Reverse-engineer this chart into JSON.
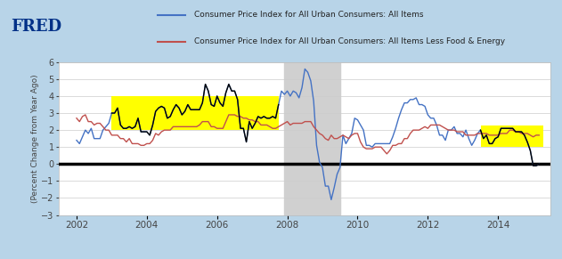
{
  "background_color": "#b8d4e8",
  "plot_bg_color": "#ffffff",
  "ylim": [
    -3,
    6
  ],
  "yticks": [
    -3,
    -2,
    -1,
    0,
    1,
    2,
    3,
    4,
    5,
    6
  ],
  "xlim_start": 2001.5,
  "xlim_end": 2015.5,
  "xticks": [
    2002,
    2004,
    2006,
    2008,
    2010,
    2012,
    2014
  ],
  "recession_start": 2007.9,
  "recession_end": 2009.5,
  "yellow_rect1_x": 2003.0,
  "yellow_rect1_end": 2007.75,
  "yellow_rect1_ymin": 2.0,
  "yellow_rect1_ymax": 4.0,
  "yellow_rect2_x": 2013.5,
  "yellow_rect2_end": 2015.3,
  "yellow_rect2_ymin": 1.0,
  "yellow_rect2_ymax": 2.25,
  "zero_line_color": "#000000",
  "cpi_all_color": "#4472c4",
  "cpi_core_color": "#c0504d",
  "cpi_black_color": "#000000",
  "legend_label_all": "Consumer Price Index for All Urban Consumers: All Items",
  "legend_label_core": "Consumer Price Index for All Urban Consumers: All Items Less Food & Energy",
  "ylabel": "(Percent Change from Year Ago)",
  "cpi_all_x": [
    2002.0,
    2002.083,
    2002.167,
    2002.25,
    2002.333,
    2002.417,
    2002.5,
    2002.583,
    2002.667,
    2002.75,
    2002.833,
    2002.917,
    2003.0,
    2003.083,
    2003.167,
    2003.25,
    2003.333,
    2003.417,
    2003.5,
    2003.583,
    2003.667,
    2003.75,
    2003.833,
    2003.917,
    2004.0,
    2004.083,
    2004.167,
    2004.25,
    2004.333,
    2004.417,
    2004.5,
    2004.583,
    2004.667,
    2004.75,
    2004.833,
    2004.917,
    2005.0,
    2005.083,
    2005.167,
    2005.25,
    2005.333,
    2005.417,
    2005.5,
    2005.583,
    2005.667,
    2005.75,
    2005.833,
    2005.917,
    2006.0,
    2006.083,
    2006.167,
    2006.25,
    2006.333,
    2006.417,
    2006.5,
    2006.583,
    2006.667,
    2006.75,
    2006.833,
    2006.917,
    2007.0,
    2007.083,
    2007.167,
    2007.25,
    2007.333,
    2007.417,
    2007.5,
    2007.583,
    2007.667,
    2007.75,
    2007.833,
    2007.917,
    2008.0,
    2008.083,
    2008.167,
    2008.25,
    2008.333,
    2008.417,
    2008.5,
    2008.583,
    2008.667,
    2008.75,
    2008.833,
    2008.917,
    2009.0,
    2009.083,
    2009.167,
    2009.25,
    2009.333,
    2009.417,
    2009.5,
    2009.583,
    2009.667,
    2009.75,
    2009.833,
    2009.917,
    2010.0,
    2010.083,
    2010.167,
    2010.25,
    2010.333,
    2010.417,
    2010.5,
    2010.583,
    2010.667,
    2010.75,
    2010.833,
    2010.917,
    2011.0,
    2011.083,
    2011.167,
    2011.25,
    2011.333,
    2011.417,
    2011.5,
    2011.583,
    2011.667,
    2011.75,
    2011.833,
    2011.917,
    2012.0,
    2012.083,
    2012.167,
    2012.25,
    2012.333,
    2012.417,
    2012.5,
    2012.583,
    2012.667,
    2012.75,
    2012.833,
    2012.917,
    2013.0,
    2013.083,
    2013.167,
    2013.25,
    2013.333,
    2013.417,
    2013.5,
    2013.583,
    2013.667,
    2013.75,
    2013.833,
    2013.917,
    2014.0,
    2014.083,
    2014.167,
    2014.25,
    2014.333,
    2014.417,
    2014.5,
    2014.583,
    2014.667,
    2014.75,
    2014.833,
    2014.917,
    2015.0,
    2015.083,
    2015.167
  ],
  "cpi_all_y": [
    1.4,
    1.2,
    1.6,
    2.0,
    1.8,
    2.1,
    1.5,
    1.5,
    1.5,
    2.0,
    2.2,
    2.4,
    3.0,
    3.0,
    3.3,
    2.3,
    2.1,
    2.1,
    2.2,
    2.1,
    2.2,
    2.7,
    1.9,
    1.9,
    1.9,
    1.7,
    2.3,
    3.1,
    3.3,
    3.4,
    3.3,
    2.7,
    2.8,
    3.2,
    3.5,
    3.3,
    2.9,
    3.1,
    3.5,
    3.2,
    3.2,
    3.2,
    3.2,
    3.6,
    4.7,
    4.3,
    3.5,
    3.4,
    4.0,
    3.6,
    3.4,
    4.2,
    4.7,
    4.3,
    4.3,
    3.8,
    2.1,
    2.1,
    1.3,
    2.5,
    2.1,
    2.4,
    2.8,
    2.7,
    2.8,
    2.7,
    2.7,
    2.8,
    2.7,
    3.5,
    4.3,
    4.1,
    4.3,
    4.0,
    4.3,
    4.2,
    3.9,
    4.5,
    5.6,
    5.4,
    4.9,
    3.7,
    1.1,
    0.1,
    -0.2,
    -1.3,
    -1.3,
    -2.1,
    -1.4,
    -0.6,
    -0.2,
    1.7,
    1.2,
    1.5,
    1.8,
    2.7,
    2.6,
    2.3,
    2.0,
    1.1,
    1.1,
    1.0,
    1.2,
    1.2,
    1.2,
    1.2,
    1.2,
    1.2,
    1.6,
    2.1,
    2.7,
    3.2,
    3.6,
    3.6,
    3.8,
    3.8,
    3.9,
    3.5,
    3.5,
    3.4,
    2.9,
    2.7,
    2.7,
    2.3,
    1.7,
    1.7,
    1.4,
    2.0,
    2.0,
    2.2,
    1.8,
    1.8,
    1.6,
    2.0,
    1.5,
    1.1,
    1.4,
    1.8,
    2.0,
    1.5,
    1.7,
    1.2,
    1.2,
    1.5,
    1.6,
    2.1,
    2.1,
    2.1,
    2.1,
    2.1,
    1.9,
    1.9,
    1.9,
    1.7,
    1.3,
    0.8,
    -0.1,
    -0.1,
    0.0
  ],
  "cpi_core_x": [
    2002.0,
    2002.083,
    2002.167,
    2002.25,
    2002.333,
    2002.417,
    2002.5,
    2002.583,
    2002.667,
    2002.75,
    2002.833,
    2002.917,
    2003.0,
    2003.083,
    2003.167,
    2003.25,
    2003.333,
    2003.417,
    2003.5,
    2003.583,
    2003.667,
    2003.75,
    2003.833,
    2003.917,
    2004.0,
    2004.083,
    2004.167,
    2004.25,
    2004.333,
    2004.417,
    2004.5,
    2004.583,
    2004.667,
    2004.75,
    2004.833,
    2004.917,
    2005.0,
    2005.083,
    2005.167,
    2005.25,
    2005.333,
    2005.417,
    2005.5,
    2005.583,
    2005.667,
    2005.75,
    2005.833,
    2005.917,
    2006.0,
    2006.083,
    2006.167,
    2006.25,
    2006.333,
    2006.417,
    2006.5,
    2006.583,
    2006.667,
    2006.75,
    2006.833,
    2006.917,
    2007.0,
    2007.083,
    2007.167,
    2007.25,
    2007.333,
    2007.417,
    2007.5,
    2007.583,
    2007.667,
    2007.75,
    2007.833,
    2007.917,
    2008.0,
    2008.083,
    2008.167,
    2008.25,
    2008.333,
    2008.417,
    2008.5,
    2008.583,
    2008.667,
    2008.75,
    2008.833,
    2008.917,
    2009.0,
    2009.083,
    2009.167,
    2009.25,
    2009.333,
    2009.417,
    2009.5,
    2009.583,
    2009.667,
    2009.75,
    2009.833,
    2009.917,
    2010.0,
    2010.083,
    2010.167,
    2010.25,
    2010.333,
    2010.417,
    2010.5,
    2010.583,
    2010.667,
    2010.75,
    2010.833,
    2010.917,
    2011.0,
    2011.083,
    2011.167,
    2011.25,
    2011.333,
    2011.417,
    2011.5,
    2011.583,
    2011.667,
    2011.75,
    2011.833,
    2011.917,
    2012.0,
    2012.083,
    2012.167,
    2012.25,
    2012.333,
    2012.417,
    2012.5,
    2012.583,
    2012.667,
    2012.75,
    2012.833,
    2012.917,
    2013.0,
    2013.083,
    2013.167,
    2013.25,
    2013.333,
    2013.417,
    2013.5,
    2013.583,
    2013.667,
    2013.75,
    2013.833,
    2013.917,
    2014.0,
    2014.083,
    2014.167,
    2014.25,
    2014.333,
    2014.417,
    2014.5,
    2014.583,
    2014.667,
    2014.75,
    2014.833,
    2014.917,
    2015.0,
    2015.083,
    2015.167
  ],
  "cpi_core_y": [
    2.7,
    2.5,
    2.8,
    2.9,
    2.5,
    2.5,
    2.3,
    2.4,
    2.4,
    2.2,
    2.0,
    2.0,
    1.7,
    1.7,
    1.7,
    1.5,
    1.5,
    1.3,
    1.5,
    1.2,
    1.2,
    1.2,
    1.1,
    1.1,
    1.2,
    1.2,
    1.4,
    1.8,
    1.7,
    1.9,
    2.0,
    2.0,
    2.0,
    2.2,
    2.2,
    2.2,
    2.2,
    2.2,
    2.2,
    2.2,
    2.2,
    2.2,
    2.3,
    2.5,
    2.5,
    2.5,
    2.2,
    2.2,
    2.1,
    2.1,
    2.1,
    2.5,
    2.9,
    2.9,
    2.9,
    2.8,
    2.8,
    2.7,
    2.7,
    2.6,
    2.6,
    2.5,
    2.5,
    2.3,
    2.3,
    2.3,
    2.2,
    2.1,
    2.1,
    2.2,
    2.3,
    2.4,
    2.5,
    2.3,
    2.4,
    2.4,
    2.4,
    2.4,
    2.5,
    2.5,
    2.5,
    2.2,
    2.0,
    1.8,
    1.7,
    1.5,
    1.4,
    1.7,
    1.5,
    1.5,
    1.6,
    1.7,
    1.6,
    1.5,
    1.7,
    1.8,
    1.8,
    1.3,
    1.0,
    0.9,
    0.9,
    0.9,
    1.0,
    1.0,
    1.0,
    0.8,
    0.6,
    0.8,
    1.1,
    1.1,
    1.2,
    1.2,
    1.5,
    1.5,
    1.8,
    2.0,
    2.0,
    2.0,
    2.1,
    2.2,
    2.1,
    2.3,
    2.3,
    2.3,
    2.3,
    2.2,
    2.1,
    2.0,
    2.0,
    2.0,
    1.9,
    1.9,
    1.9,
    1.7,
    1.7,
    1.7,
    1.7,
    1.8,
    1.8,
    1.8,
    1.8,
    1.7,
    1.7,
    1.7,
    1.7,
    1.8,
    1.8,
    1.8,
    2.0,
    2.0,
    1.9,
    1.9,
    1.8,
    1.8,
    1.8,
    1.7,
    1.6,
    1.7,
    1.7
  ]
}
